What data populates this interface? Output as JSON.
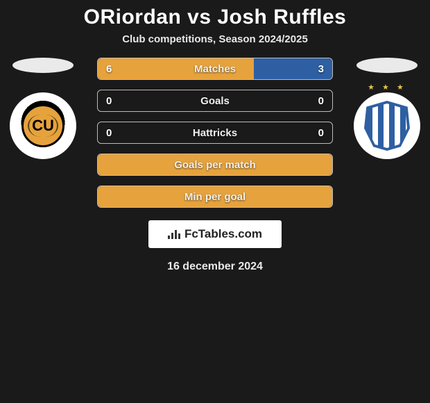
{
  "title": "ORiordan vs Josh Ruffles",
  "subtitle": "Club competitions, Season 2024/2025",
  "colors": {
    "left": "#e6a23c",
    "right": "#2e5fa3",
    "background": "#1a1a1a",
    "bar_border": "#bbbbbb",
    "text": "#f0f0f0"
  },
  "clubs": {
    "left": {
      "initials": "CU",
      "name": "Cambridge United"
    },
    "right": {
      "initials": "",
      "name": "Huddersfield Town"
    }
  },
  "stats": [
    {
      "label": "Matches",
      "left_val": "6",
      "right_val": "3",
      "left_pct": 66.7,
      "right_pct": 33.3,
      "show_values": true,
      "full_left": false
    },
    {
      "label": "Goals",
      "left_val": "0",
      "right_val": "0",
      "left_pct": 0,
      "right_pct": 0,
      "show_values": true,
      "full_left": false
    },
    {
      "label": "Hattricks",
      "left_val": "0",
      "right_val": "0",
      "left_pct": 0,
      "right_pct": 0,
      "show_values": true,
      "full_left": false
    },
    {
      "label": "Goals per match",
      "left_val": "",
      "right_val": "",
      "left_pct": 100,
      "right_pct": 0,
      "show_values": false,
      "full_left": true
    },
    {
      "label": "Min per goal",
      "left_val": "",
      "right_val": "",
      "left_pct": 100,
      "right_pct": 0,
      "show_values": false,
      "full_left": true
    }
  ],
  "footer": {
    "brand": "FcTables.com",
    "date": "16 december 2024"
  },
  "typography": {
    "title_fontsize": 30,
    "subtitle_fontsize": 15,
    "stat_label_fontsize": 15
  }
}
